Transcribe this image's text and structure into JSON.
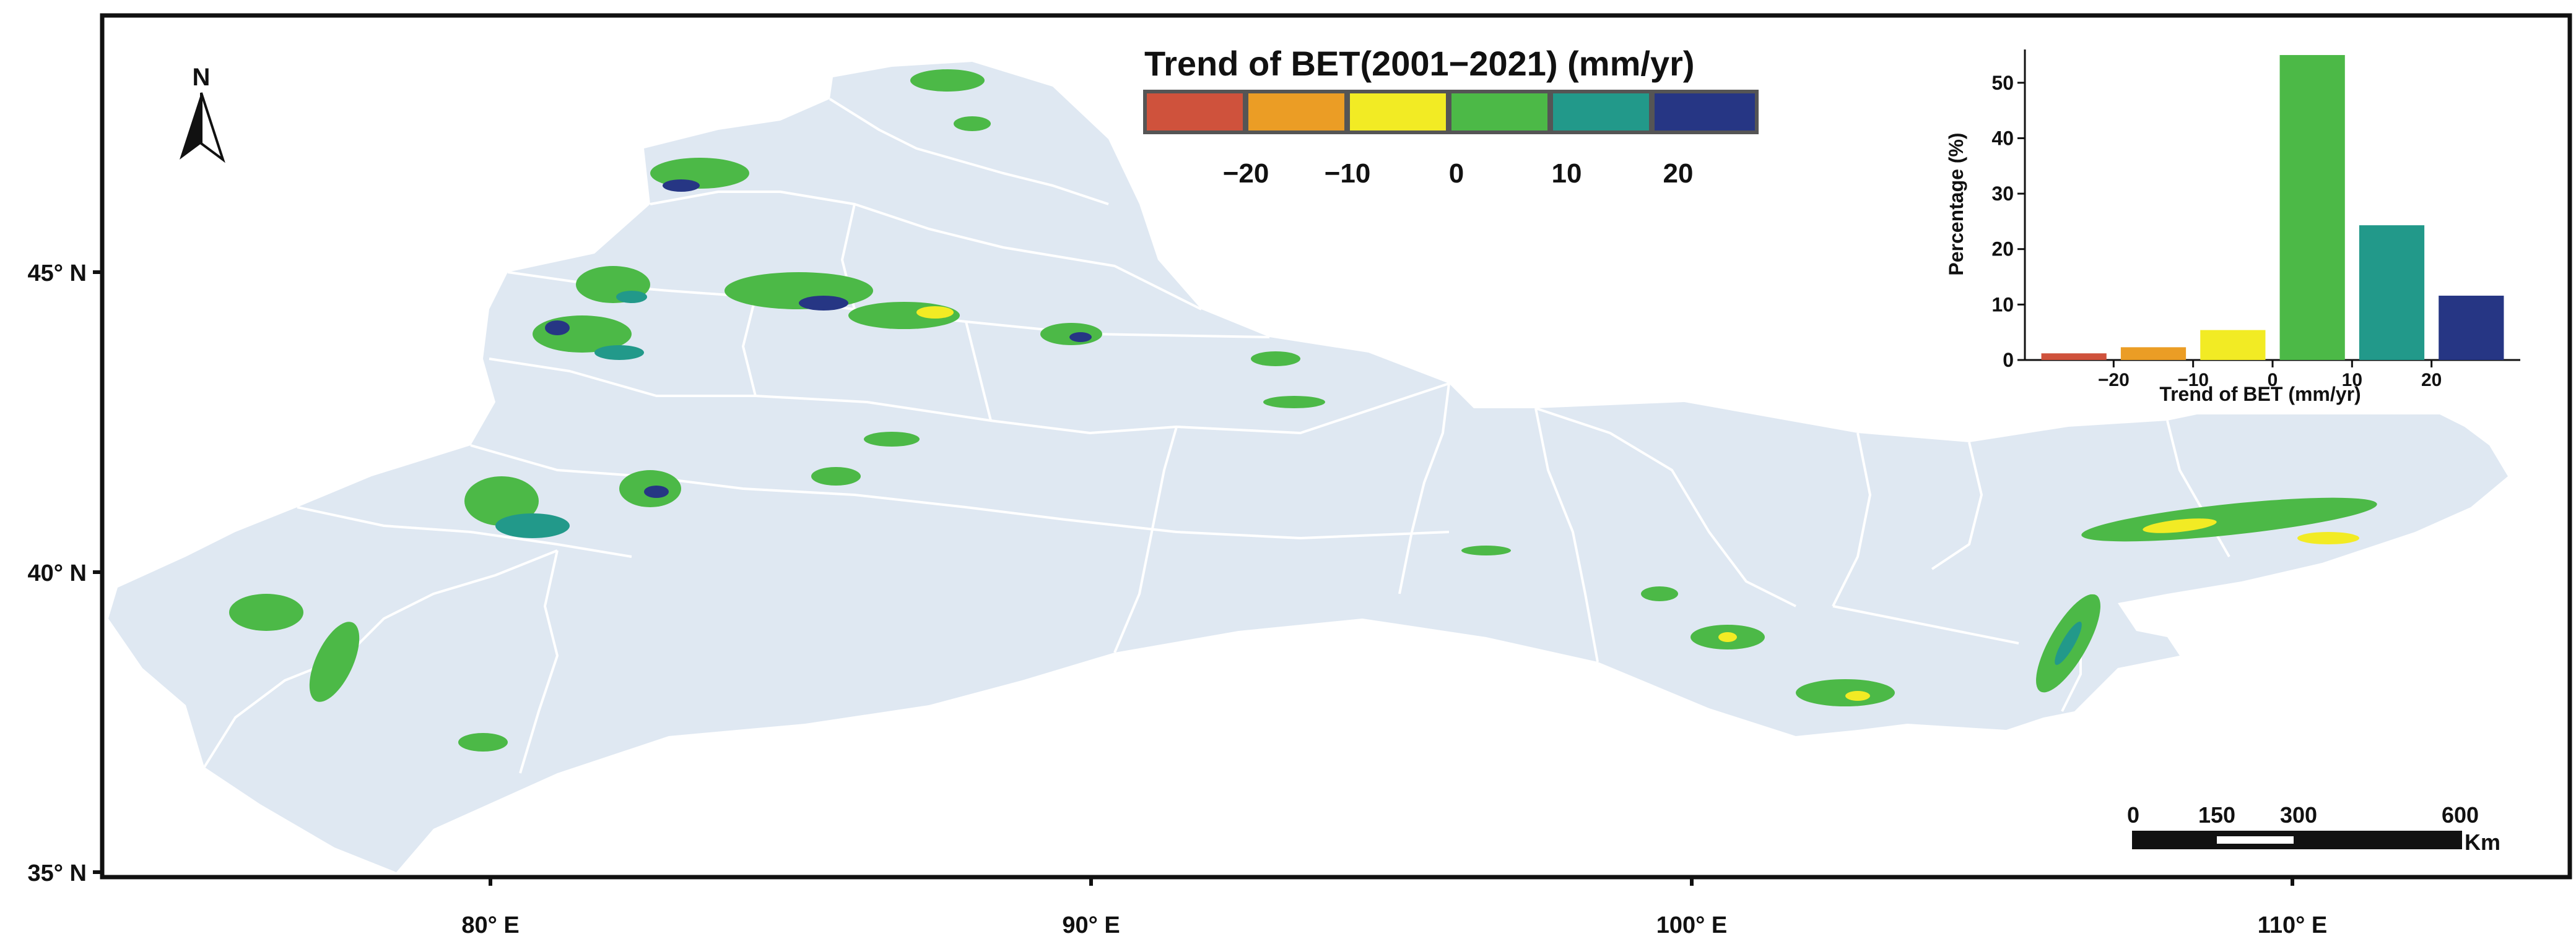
{
  "map": {
    "lat_labels": [
      "45° N",
      "40° N",
      "35° N"
    ],
    "lon_labels": [
      "80° E",
      "90° E",
      "100° E",
      "110° E"
    ],
    "north_label": "N",
    "region_color": "#dfe8f2",
    "boundary_color": "#ffffff"
  },
  "legend": {
    "title": "Trend of BET(2001−2021) (mm/yr)",
    "colors": [
      "#cf523c",
      "#eb9d25",
      "#f2eb24",
      "#4cb947",
      "#22998a",
      "#263684"
    ],
    "tick_labels": [
      "−20",
      "−10",
      "0",
      "10",
      "20"
    ]
  },
  "scale_bar": {
    "labels": [
      "0",
      "150",
      "300",
      "600"
    ],
    "unit": "Km"
  },
  "chart_data": {
    "type": "bar",
    "categories": [
      "< −20",
      "−20 to −10",
      "−10 to 0",
      "0 to 10",
      "10 to 20",
      "> 20"
    ],
    "values": [
      1.2,
      2.3,
      5.4,
      55,
      24.3,
      11.6
    ],
    "colors": [
      "#cf523c",
      "#eb9d25",
      "#f2eb24",
      "#4cb947",
      "#22998a",
      "#263684"
    ],
    "xlabel": "Trend of BET (mm/yr)",
    "ylabel": "Percentage (%)",
    "x_tick_labels": [
      "−20",
      "−10",
      "0",
      "10",
      "20"
    ],
    "y_ticks": [
      "0",
      "10",
      "20",
      "30",
      "40",
      "50"
    ],
    "ylim": [
      0,
      56
    ]
  }
}
